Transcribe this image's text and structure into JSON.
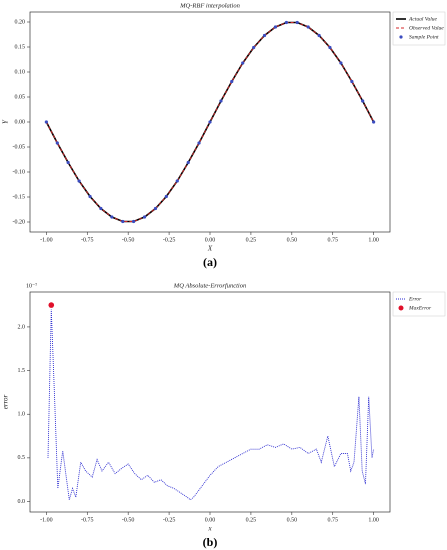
{
  "chart_data": [
    {
      "type": "line",
      "title": "MQ-RBF interpolation",
      "x_label": "X",
      "y_label": "Y",
      "panel_label": "(a)",
      "x": [
        -1,
        -0.933,
        -0.867,
        -0.8,
        -0.733,
        -0.667,
        -0.6,
        -0.533,
        -0.467,
        -0.4,
        -0.333,
        -0.267,
        -0.2,
        -0.133,
        -0.067,
        0,
        0.067,
        0.133,
        0.2,
        0.267,
        0.333,
        0.4,
        0.467,
        0.533,
        0.6,
        0.667,
        0.733,
        0.8,
        0.867,
        0.933,
        1
      ],
      "series": [
        {
          "name": "Actual Value",
          "color": "#000000",
          "style": "solid",
          "values": [
            0,
            -0.042,
            -0.081,
            -0.118,
            -0.149,
            -0.173,
            -0.19,
            -0.199,
            -0.199,
            -0.19,
            -0.173,
            -0.149,
            -0.118,
            -0.081,
            -0.042,
            0,
            0.042,
            0.081,
            0.118,
            0.149,
            0.173,
            0.19,
            0.199,
            0.199,
            0.19,
            0.173,
            0.149,
            0.118,
            0.081,
            0.042,
            0
          ]
        },
        {
          "name": "Observed Value",
          "color": "#d62728",
          "style": "dashed",
          "values": [
            0,
            -0.042,
            -0.081,
            -0.118,
            -0.149,
            -0.173,
            -0.19,
            -0.199,
            -0.199,
            -0.19,
            -0.173,
            -0.149,
            -0.118,
            -0.081,
            -0.042,
            0,
            0.042,
            0.081,
            0.118,
            0.149,
            0.173,
            0.19,
            0.199,
            0.199,
            0.19,
            0.173,
            0.149,
            0.118,
            0.081,
            0.042,
            0
          ]
        },
        {
          "name": "Sample Point",
          "color": "#3b4cc0",
          "style": "markers",
          "values": [
            0,
            -0.042,
            -0.081,
            -0.118,
            -0.149,
            -0.173,
            -0.19,
            -0.199,
            -0.199,
            -0.19,
            -0.173,
            -0.149,
            -0.118,
            -0.081,
            -0.042,
            0,
            0.042,
            0.081,
            0.118,
            0.149,
            0.173,
            0.19,
            0.199,
            0.199,
            0.19,
            0.173,
            0.149,
            0.118,
            0.081,
            0.042,
            0
          ]
        }
      ],
      "xlim": [
        -1.1,
        1.1
      ],
      "ylim": [
        -0.22,
        0.22
      ],
      "xticks": [
        {
          "value": -1,
          "label": "-1.00"
        },
        {
          "value": -0.75,
          "label": "-0.75"
        },
        {
          "value": -0.5,
          "label": "-0.50"
        },
        {
          "value": -0.25,
          "label": "-0.25"
        },
        {
          "value": 0,
          "label": "0.00"
        },
        {
          "value": 0.25,
          "label": "0.25"
        },
        {
          "value": 0.5,
          "label": "0.50"
        },
        {
          "value": 0.75,
          "label": "0.75"
        },
        {
          "value": 1,
          "label": "1.00"
        }
      ],
      "yticks": [
        {
          "value": -0.2,
          "label": "-0.20"
        },
        {
          "value": -0.15,
          "label": "-0.15"
        },
        {
          "value": -0.1,
          "label": "-0.10"
        },
        {
          "value": -0.05,
          "label": "-0.05"
        },
        {
          "value": 0,
          "label": "0.00"
        },
        0.05,
        {
          "value": 0.1,
          "label": "0.10"
        },
        0.15,
        {
          "value": 0.2,
          "label": "0.20"
        }
      ],
      "legend": "outside",
      "grid": false
    },
    {
      "type": "line",
      "title": "MQ Absolute-Errorfunction",
      "x_label": "x",
      "y_label": "error",
      "panel_label": "(b)",
      "y_offset_label": "10⁻⁷",
      "x": [
        -0.99,
        -0.97,
        -0.95,
        -0.93,
        -0.9,
        -0.88,
        -0.86,
        -0.84,
        -0.82,
        -0.79,
        -0.76,
        -0.72,
        -0.69,
        -0.66,
        -0.62,
        -0.58,
        -0.54,
        -0.5,
        -0.46,
        -0.42,
        -0.38,
        -0.34,
        -0.3,
        -0.26,
        -0.22,
        -0.18,
        -0.14,
        -0.12,
        -0.1,
        -0.06,
        0,
        0.05,
        0.1,
        0.15,
        0.2,
        0.25,
        0.3,
        0.35,
        0.4,
        0.45,
        0.5,
        0.55,
        0.6,
        0.65,
        0.68,
        0.72,
        0.76,
        0.8,
        0.84,
        0.86,
        0.88,
        0.91,
        0.93,
        0.95,
        0.97,
        0.99,
        1
      ],
      "series": [
        {
          "name": "Error",
          "color": "#2a2ad0",
          "style": "dotted",
          "values": [
            0.5,
            2.2,
            1.2,
            0.15,
            0.58,
            0.3,
            0.02,
            0.15,
            0.05,
            0.45,
            0.35,
            0.28,
            0.48,
            0.35,
            0.45,
            0.32,
            0.38,
            0.43,
            0.32,
            0.25,
            0.3,
            0.22,
            0.25,
            0.18,
            0.15,
            0.1,
            0.05,
            0.02,
            0.05,
            0.15,
            0.3,
            0.4,
            0.45,
            0.5,
            0.55,
            0.6,
            0.6,
            0.65,
            0.62,
            0.66,
            0.6,
            0.62,
            0.55,
            0.6,
            0.45,
            0.75,
            0.4,
            0.55,
            0.55,
            0.35,
            0.45,
            1.2,
            0.35,
            0.2,
            1.2,
            0.5,
            0.6
          ]
        },
        {
          "name": "MaxError",
          "color": "#e0102a",
          "style": "markers",
          "x": [
            -0.97
          ],
          "values": [
            2.25
          ]
        }
      ],
      "xlim": [
        -1.1,
        1.1
      ],
      "ylim": [
        -0.12,
        2.4
      ],
      "xticks": [
        {
          "value": -1,
          "label": "-1.00"
        },
        {
          "value": -0.75,
          "label": "-0.75"
        },
        {
          "value": -0.5,
          "label": "-0.50"
        },
        {
          "value": -0.25,
          "label": "-0.25"
        },
        {
          "value": 0,
          "label": "0.00"
        },
        {
          "value": 0.25,
          "label": "0.25"
        },
        {
          "value": 0.5,
          "label": "0.50"
        },
        {
          "value": 0.75,
          "label": "0.75"
        },
        {
          "value": 1,
          "label": "1.00"
        }
      ],
      "yticks": [
        {
          "value": 0,
          "label": "0.0"
        },
        0.5,
        {
          "value": 1,
          "label": "1.0"
        },
        1.5,
        {
          "value": 2,
          "label": "2.0"
        }
      ],
      "legend": "outside",
      "grid": false
    }
  ]
}
